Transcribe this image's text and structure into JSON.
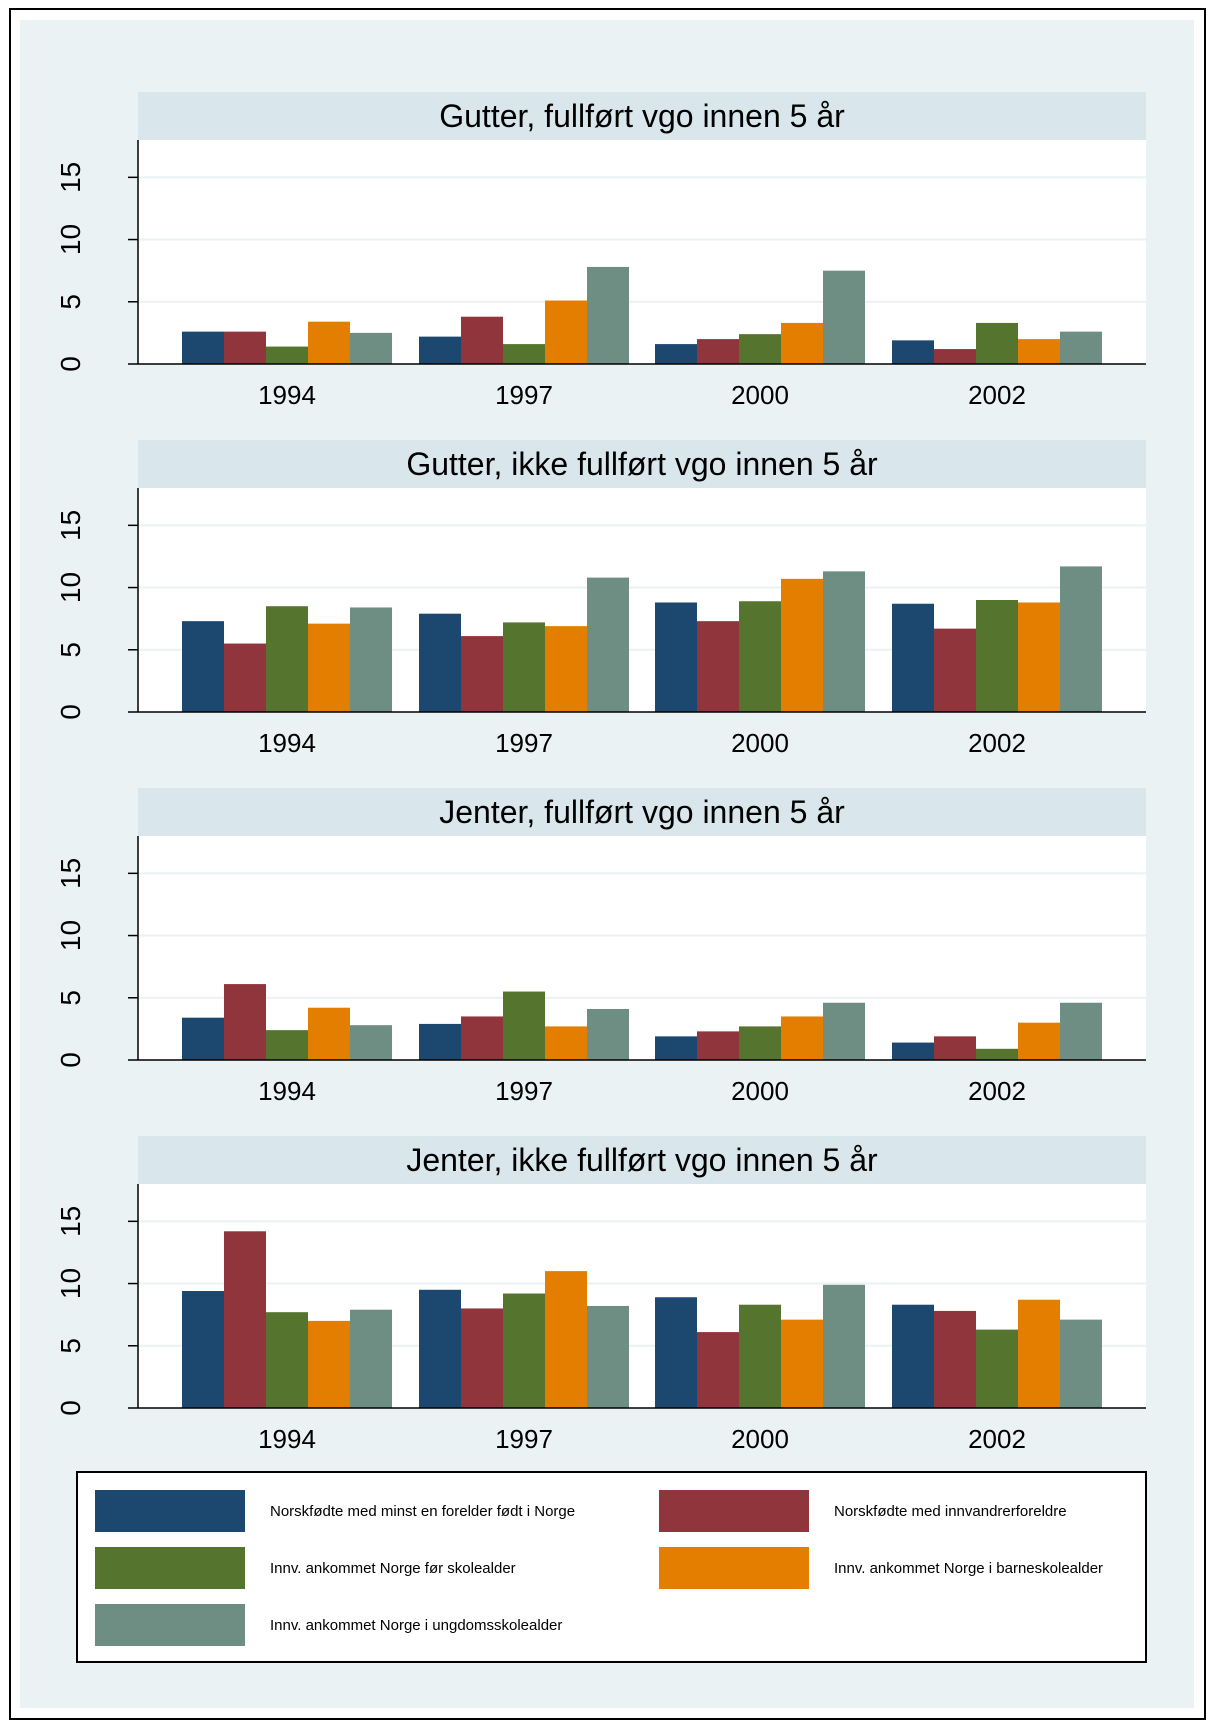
{
  "chart_data": [
    {
      "type": "bar",
      "title": "Gutter, fullført vgo innen 5 år",
      "categories": [
        "1994",
        "1997",
        "2000",
        "2002"
      ],
      "ylim": [
        0,
        18
      ],
      "yticks": [
        0,
        5,
        10,
        15
      ],
      "series": [
        {
          "name": "Norskfødte med minst en forelder født i Norge",
          "values": [
            2.6,
            2.2,
            1.6,
            1.9
          ]
        },
        {
          "name": "Norskfødte med innvandrerforeldre",
          "values": [
            2.6,
            3.8,
            2.0,
            1.2
          ]
        },
        {
          "name": "Innv. ankommet Norge før skolealder",
          "values": [
            1.4,
            1.6,
            2.4,
            3.3
          ]
        },
        {
          "name": "Innv. ankommet Norge i barneskolealder",
          "values": [
            3.4,
            5.1,
            3.3,
            2.0
          ]
        },
        {
          "name": "Innv. ankommet Norge i ungdomsskolealder",
          "values": [
            2.5,
            7.8,
            7.5,
            2.6
          ]
        }
      ]
    },
    {
      "type": "bar",
      "title": "Gutter, ikke fullført vgo innen 5 år",
      "categories": [
        "1994",
        "1997",
        "2000",
        "2002"
      ],
      "ylim": [
        0,
        18
      ],
      "yticks": [
        0,
        5,
        10,
        15
      ],
      "series": [
        {
          "name": "Norskfødte med minst en forelder født i Norge",
          "values": [
            7.3,
            7.9,
            8.8,
            8.7
          ]
        },
        {
          "name": "Norskfødte med innvandrerforeldre",
          "values": [
            5.5,
            6.1,
            7.3,
            6.7
          ]
        },
        {
          "name": "Innv. ankommet Norge før skolealder",
          "values": [
            8.5,
            7.2,
            8.9,
            9.0
          ]
        },
        {
          "name": "Innv. ankommet Norge i barneskolealder",
          "values": [
            7.1,
            6.9,
            10.7,
            8.8
          ]
        },
        {
          "name": "Innv. ankommet Norge i ungdomsskolealder",
          "values": [
            8.4,
            10.8,
            11.3,
            11.7
          ]
        }
      ]
    },
    {
      "type": "bar",
      "title": "Jenter, fullført vgo innen 5 år",
      "categories": [
        "1994",
        "1997",
        "2000",
        "2002"
      ],
      "ylim": [
        0,
        18
      ],
      "yticks": [
        0,
        5,
        10,
        15
      ],
      "series": [
        {
          "name": "Norskfødte med minst en forelder født i Norge",
          "values": [
            3.4,
            2.9,
            1.9,
            1.4
          ]
        },
        {
          "name": "Norskfødte med innvandrerforeldre",
          "values": [
            6.1,
            3.5,
            2.3,
            1.9
          ]
        },
        {
          "name": "Innv. ankommet Norge før skolealder",
          "values": [
            2.4,
            5.5,
            2.7,
            0.9
          ]
        },
        {
          "name": "Innv. ankommet Norge i barneskolealder",
          "values": [
            4.2,
            2.7,
            3.5,
            3.0
          ]
        },
        {
          "name": "Innv. ankommet Norge i ungdomsskolealder",
          "values": [
            2.8,
            4.1,
            4.6,
            4.6
          ]
        }
      ]
    },
    {
      "type": "bar",
      "title": "Jenter, ikke fullført vgo innen 5 år",
      "categories": [
        "1994",
        "1997",
        "2000",
        "2002"
      ],
      "ylim": [
        0,
        18
      ],
      "yticks": [
        0,
        5,
        10,
        15
      ],
      "series": [
        {
          "name": "Norskfødte med minst en forelder født i Norge",
          "values": [
            9.4,
            9.5,
            8.9,
            8.3
          ]
        },
        {
          "name": "Norskfødte med innvandrerforeldre",
          "values": [
            14.2,
            8.0,
            6.1,
            7.8
          ]
        },
        {
          "name": "Innv. ankommet Norge før skolealder",
          "values": [
            7.7,
            9.2,
            8.3,
            6.3
          ]
        },
        {
          "name": "Innv. ankommet Norge i barneskolealder",
          "values": [
            7.0,
            11.0,
            7.1,
            8.7
          ]
        },
        {
          "name": "Innv. ankommet Norge i ungdomsskolealder",
          "values": [
            7.9,
            8.2,
            9.9,
            7.1
          ]
        }
      ]
    }
  ],
  "legend": {
    "position": "bottom",
    "items": [
      {
        "label": "Norskfødte med minst en forelder født i Norge",
        "color": "#1c476f"
      },
      {
        "label": "Norskfødte med innvandrerforeldre",
        "color": "#90353b"
      },
      {
        "label": "Innv. ankommet Norge før skolealder",
        "color": "#55752f"
      },
      {
        "label": "Innv. ankommet Norge i barneskolealder",
        "color": "#e37e00"
      },
      {
        "label": "Innv. ankommet Norge i ungdomsskolealder",
        "color": "#6e8e84"
      }
    ]
  },
  "colors": {
    "outer_background": "#eaf2f3",
    "title_band": "#d9e6eb",
    "gridline": "#eaf2f3"
  }
}
